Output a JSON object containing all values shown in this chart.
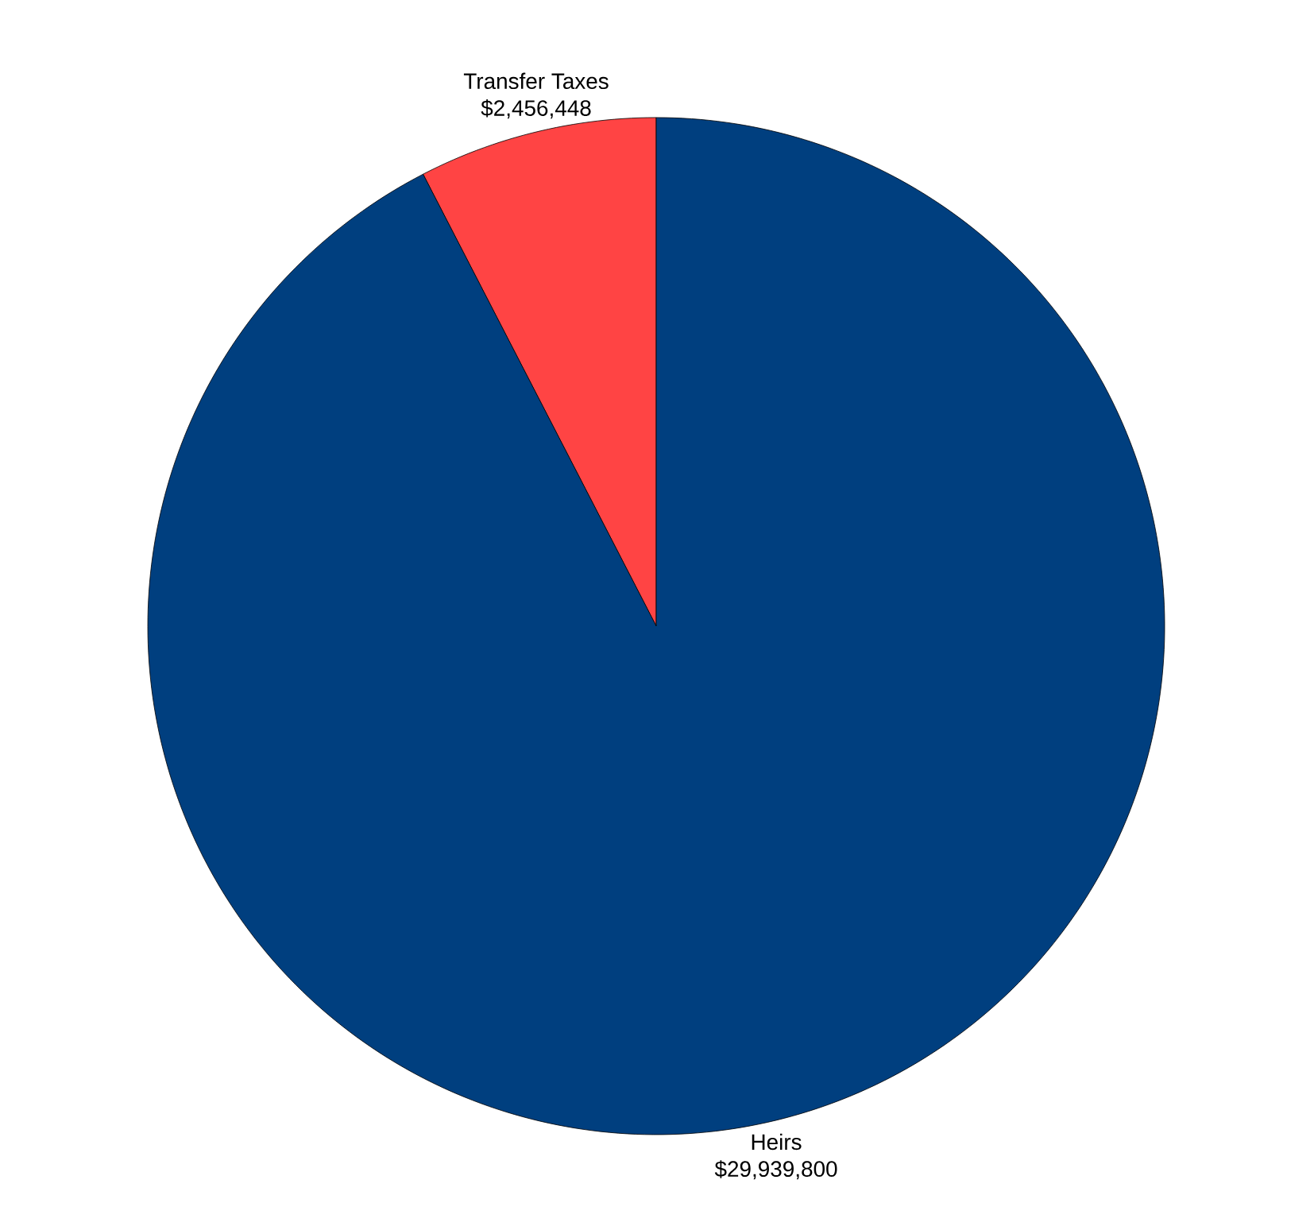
{
  "chart_data": {
    "type": "pie",
    "categories": [
      "Transfer Taxes",
      "Heirs"
    ],
    "values": [
      2456448,
      29939800
    ],
    "value_labels": [
      "$2,456,448",
      "$29,939,800"
    ],
    "colors": [
      "#ff4444",
      "#003f7f"
    ]
  }
}
